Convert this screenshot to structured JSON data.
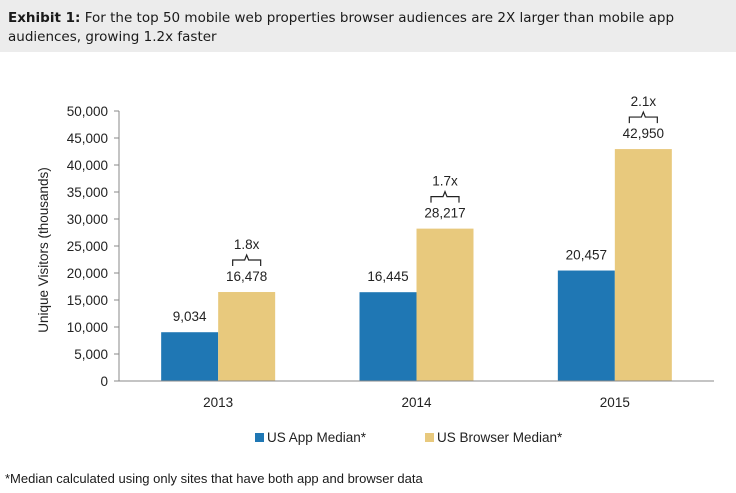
{
  "header": {
    "label": "Exhibit 1:",
    "text": "For the top 50 mobile web properties browser audiences are 2X larger than mobile app audiences, growing 1.2x faster"
  },
  "footnote": "*Median calculated using only sites that have both app and browser data",
  "chart_data": {
    "type": "bar",
    "categories": [
      "2013",
      "2014",
      "2015"
    ],
    "series": [
      {
        "name": "US App Median*",
        "values": [
          9034,
          16445,
          20457
        ],
        "labels": [
          "9,034",
          "16,445",
          "20,457"
        ],
        "color": "#1f77b4"
      },
      {
        "name": "US Browser Median*",
        "values": [
          16478,
          28217,
          42950
        ],
        "labels": [
          "16,478",
          "28,217",
          "42,950"
        ],
        "color": "#e8c97d"
      }
    ],
    "ratios": [
      "1.8x",
      "1.7x",
      "2.1x"
    ],
    "ylabel": "Unique Visitors (thousands)",
    "ylim": [
      0,
      50000
    ],
    "yticks": [
      0,
      5000,
      10000,
      15000,
      20000,
      25000,
      30000,
      35000,
      40000,
      45000,
      50000
    ],
    "ytick_labels": [
      "0",
      "5,000",
      "10,000",
      "15,000",
      "20,000",
      "25,000",
      "30,000",
      "35,000",
      "40,000",
      "45,000",
      "50,000"
    ],
    "legend_position": "bottom",
    "grid": false
  }
}
